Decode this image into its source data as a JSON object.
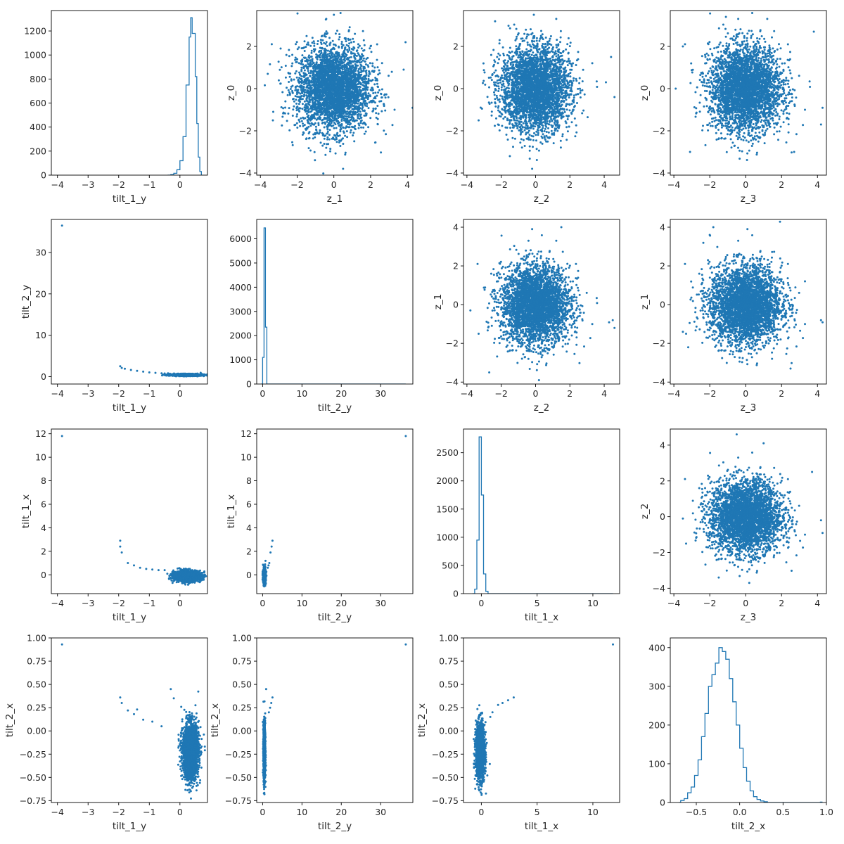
{
  "chart_data": {
    "type": "pair-grid",
    "series_color": "#1f77b4",
    "variables": [
      "tilt_1_y",
      "tilt_2_y",
      "tilt_1_x",
      "tilt_2_x",
      "z_0",
      "z_1",
      "z_2",
      "z_3"
    ],
    "panels": [
      {
        "type": "histogram",
        "row": 0,
        "col": 0,
        "xlabel": "tilt_1_y",
        "ylabel": "",
        "xlim": [
          -4.2,
          0.9
        ],
        "ylim": [
          0,
          1370
        ],
        "xticks": [
          -4,
          -3,
          -2,
          -1,
          0
        ],
        "yticks": [
          0,
          200,
          400,
          600,
          800,
          1000,
          1200
        ],
        "bins": [
          [
            -0.4,
            0
          ],
          [
            -0.3,
            4
          ],
          [
            -0.2,
            15
          ],
          [
            -0.1,
            45
          ],
          [
            0,
            120
          ],
          [
            0.1,
            320
          ],
          [
            0.2,
            750
          ],
          [
            0.3,
            1150
          ],
          [
            0.35,
            1310
          ],
          [
            0.4,
            1180
          ],
          [
            0.5,
            820
          ],
          [
            0.55,
            430
          ],
          [
            0.6,
            150
          ],
          [
            0.65,
            30
          ],
          [
            0.7,
            0
          ]
        ]
      },
      {
        "type": "scatter",
        "row": 0,
        "col": 1,
        "xlabel": "z_1",
        "ylabel": "z_0",
        "xlim": [
          -4.2,
          4.3
        ],
        "ylim": [
          -4.1,
          3.7
        ],
        "xticks": [
          -4,
          -2,
          0,
          2,
          4
        ],
        "yticks": [
          -4,
          -2,
          0,
          2
        ],
        "cloud": {
          "cx": 0,
          "cy": 0,
          "sx": 1,
          "sy": 1,
          "n": 3500
        },
        "points": [
          [
            -3.6,
            0.7
          ],
          [
            -3.3,
            -1.1
          ],
          [
            3.9,
            2.2
          ],
          [
            3.8,
            0.9
          ],
          [
            -2.9,
            1.9
          ],
          [
            0.5,
            -3.8
          ],
          [
            0.0,
            3.5
          ]
        ]
      },
      {
        "type": "scatter",
        "row": 0,
        "col": 2,
        "xlabel": "z_2",
        "ylabel": "z_0",
        "xlim": [
          -4.2,
          4.9
        ],
        "ylim": [
          -4.1,
          3.7
        ],
        "xticks": [
          -4,
          -2,
          0,
          2,
          4
        ],
        "yticks": [
          -4,
          -2,
          0,
          2
        ],
        "cloud": {
          "cx": 0,
          "cy": 0,
          "sx": 1,
          "sy": 1,
          "n": 3500
        },
        "points": [
          [
            -3.2,
            -0.9
          ],
          [
            4.6,
            -0.4
          ],
          [
            4.4,
            1.5
          ],
          [
            -1.5,
            -3.2
          ],
          [
            -0.2,
            -3.8
          ],
          [
            -0.1,
            3.5
          ],
          [
            4.1,
            0.3
          ]
        ]
      },
      {
        "type": "scatter",
        "row": 0,
        "col": 3,
        "xlabel": "z_3",
        "ylabel": "z_0",
        "xlim": [
          -4.2,
          4.5
        ],
        "ylim": [
          -4.1,
          3.7
        ],
        "xticks": [
          -4,
          -2,
          0,
          2,
          4
        ],
        "yticks": [
          -4,
          -2,
          0,
          2
        ],
        "cloud": {
          "cx": 0,
          "cy": 0,
          "sx": 1,
          "sy": 1,
          "n": 3500
        },
        "points": [
          [
            -3.9,
            0.0
          ],
          [
            -3.1,
            -3.0
          ],
          [
            4.2,
            -1.7
          ],
          [
            3.8,
            2.7
          ],
          [
            -1.1,
            3.4
          ],
          [
            2.7,
            -3.0
          ],
          [
            -3.5,
            2.0
          ]
        ]
      },
      {
        "type": "scatter",
        "row": 1,
        "col": 0,
        "xlabel": "tilt_1_y",
        "ylabel": "tilt_2_y",
        "xlim": [
          -4.2,
          0.9
        ],
        "ylim": [
          -1.8,
          38
        ],
        "xticks": [
          -4,
          -3,
          -2,
          -1,
          0
        ],
        "yticks": [
          0,
          10,
          20,
          30
        ],
        "cloud": {
          "cx": 0.2,
          "cy": 0.4,
          "sx": 0.25,
          "sy": 0.12,
          "n": 1500
        },
        "points": [
          [
            -3.85,
            36.5
          ],
          [
            -1.95,
            2.5
          ],
          [
            -1.9,
            2.1
          ],
          [
            -1.8,
            1.9
          ],
          [
            -1.6,
            1.6
          ],
          [
            -1.4,
            1.4
          ],
          [
            -1.2,
            1.2
          ],
          [
            -1.0,
            1.0
          ],
          [
            -0.8,
            0.9
          ],
          [
            -0.6,
            0.8
          ],
          [
            -0.5,
            0.75
          ]
        ]
      },
      {
        "type": "histogram",
        "row": 1,
        "col": 1,
        "xlabel": "tilt_2_y",
        "ylabel": "",
        "xlim": [
          -1.5,
          38.2
        ],
        "ylim": [
          0,
          6800
        ],
        "xticks": [
          0,
          10,
          20,
          30
        ],
        "yticks": [
          0,
          1000,
          2000,
          3000,
          4000,
          5000,
          6000
        ],
        "bins": [
          [
            -0.3,
            0
          ],
          [
            0,
            1100
          ],
          [
            0.36,
            6450
          ],
          [
            0.72,
            2350
          ],
          [
            1.08,
            0
          ],
          [
            36.4,
            0
          ]
        ]
      },
      {
        "type": "scatter",
        "row": 1,
        "col": 2,
        "xlabel": "z_2",
        "ylabel": "z_1",
        "xlim": [
          -4.2,
          4.9
        ],
        "ylim": [
          -4.1,
          4.4
        ],
        "xticks": [
          -4,
          -2,
          0,
          2,
          4
        ],
        "yticks": [
          -4,
          -2,
          0,
          2,
          4
        ],
        "cloud": {
          "cx": 0,
          "cy": 0,
          "sx": 1,
          "sy": 1,
          "n": 3500
        },
        "points": [
          [
            -3.8,
            -0.3
          ],
          [
            4.6,
            -1.2
          ],
          [
            4.5,
            -0.8
          ],
          [
            1.5,
            4.0
          ],
          [
            -0.2,
            3.9
          ],
          [
            -2.7,
            -3.5
          ],
          [
            0.2,
            -3.9
          ]
        ]
      },
      {
        "type": "scatter",
        "row": 1,
        "col": 3,
        "xlabel": "z_3",
        "ylabel": "z_1",
        "xlim": [
          -4.2,
          4.5
        ],
        "ylim": [
          -4.1,
          4.4
        ],
        "xticks": [
          -4,
          -2,
          0,
          2,
          4
        ],
        "yticks": [
          -4,
          -2,
          0,
          2,
          4
        ],
        "cloud": {
          "cx": 0,
          "cy": 0,
          "sx": 1,
          "sy": 1,
          "n": 3500
        },
        "points": [
          [
            -1.8,
            4.0
          ],
          [
            0.1,
            3.9
          ],
          [
            4.2,
            -0.8
          ],
          [
            -3.5,
            -1.4
          ],
          [
            -3.2,
            -2.2
          ],
          [
            2.5,
            -3.3
          ],
          [
            -2.0,
            3.6
          ]
        ]
      },
      {
        "type": "scatter",
        "row": 2,
        "col": 0,
        "xlabel": "tilt_1_y",
        "ylabel": "tilt_1_x",
        "xlim": [
          -4.2,
          0.9
        ],
        "ylim": [
          -1.6,
          12.4
        ],
        "xticks": [
          -4,
          -3,
          -2,
          -1,
          0
        ],
        "yticks": [
          0,
          2,
          4,
          6,
          8,
          10,
          12
        ],
        "cloud": {
          "cx": 0.25,
          "cy": -0.1,
          "sx": 0.22,
          "sy": 0.22,
          "n": 1500
        },
        "points": [
          [
            -3.85,
            11.8
          ],
          [
            -1.95,
            2.9
          ],
          [
            -1.95,
            2.4
          ],
          [
            -1.9,
            1.9
          ],
          [
            -1.7,
            1.0
          ],
          [
            -1.5,
            0.8
          ],
          [
            -1.3,
            0.6
          ],
          [
            -1.1,
            0.5
          ],
          [
            -0.9,
            0.45
          ],
          [
            -0.7,
            0.4
          ],
          [
            -0.5,
            0.4
          ]
        ]
      },
      {
        "type": "scatter",
        "row": 2,
        "col": 1,
        "xlabel": "tilt_2_y",
        "ylabel": "tilt_1_x",
        "xlim": [
          -1.5,
          38.2
        ],
        "ylim": [
          -1.6,
          12.4
        ],
        "xticks": [
          0,
          10,
          20,
          30
        ],
        "yticks": [
          0,
          2,
          4,
          6,
          8,
          10,
          12
        ],
        "cloud": {
          "cx": 0.45,
          "cy": -0.1,
          "sx": 0.15,
          "sy": 0.3,
          "n": 1200
        },
        "points": [
          [
            36.4,
            11.8
          ],
          [
            2.5,
            2.9
          ],
          [
            2.3,
            2.4
          ],
          [
            2.0,
            1.9
          ],
          [
            1.7,
            1.0
          ],
          [
            1.5,
            0.8
          ],
          [
            1.3,
            0.6
          ]
        ]
      },
      {
        "type": "histogram",
        "row": 2,
        "col": 2,
        "xlabel": "tilt_1_x",
        "ylabel": "",
        "xlim": [
          -1.6,
          12.4
        ],
        "ylim": [
          0,
          2920
        ],
        "xticks": [
          0,
          5,
          10
        ],
        "yticks": [
          0,
          500,
          1000,
          1500,
          2000,
          2500
        ],
        "bins": [
          [
            -0.8,
            0
          ],
          [
            -0.6,
            80
          ],
          [
            -0.4,
            950
          ],
          [
            -0.2,
            2780
          ],
          [
            0,
            1750
          ],
          [
            0.2,
            350
          ],
          [
            0.4,
            40
          ],
          [
            0.6,
            0
          ],
          [
            11.8,
            0
          ]
        ]
      },
      {
        "type": "scatter",
        "row": 2,
        "col": 3,
        "xlabel": "z_3",
        "ylabel": "z_2",
        "xlim": [
          -4.2,
          4.5
        ],
        "ylim": [
          -4.3,
          4.9
        ],
        "xticks": [
          -4,
          -2,
          0,
          2,
          4
        ],
        "yticks": [
          -4,
          -2,
          0,
          2,
          4
        ],
        "cloud": {
          "cx": 0,
          "cy": 0,
          "sx": 1,
          "sy": 1,
          "n": 3500
        },
        "points": [
          [
            -3.5,
            -0.1
          ],
          [
            4.2,
            -0.2
          ],
          [
            -0.5,
            4.6
          ],
          [
            3.7,
            2.5
          ],
          [
            0.2,
            -3.7
          ],
          [
            -1.5,
            -3.4
          ],
          [
            1.0,
            4.1
          ]
        ]
      },
      {
        "type": "scatter",
        "row": 3,
        "col": 0,
        "xlabel": "tilt_1_y",
        "ylabel": "tilt_2_x",
        "xlim": [
          -4.2,
          0.9
        ],
        "ylim": [
          -0.77,
          1.0
        ],
        "xticks": [
          -4,
          -3,
          -2,
          -1,
          0
        ],
        "yticks": [
          -0.75,
          -0.5,
          -0.25,
          0.0,
          0.25,
          0.5,
          0.75,
          1.0
        ],
        "cloud": {
          "cx": 0.35,
          "cy": -0.22,
          "sx": 0.13,
          "sy": 0.15,
          "n": 2000
        },
        "points": [
          [
            -3.85,
            0.93
          ],
          [
            -1.95,
            0.36
          ],
          [
            -1.9,
            0.3
          ],
          [
            -1.7,
            0.22
          ],
          [
            -1.5,
            0.18
          ],
          [
            -1.4,
            0.23
          ],
          [
            -1.2,
            0.12
          ],
          [
            -0.9,
            0.1
          ],
          [
            -0.6,
            0.05
          ],
          [
            -0.3,
            0.45
          ],
          [
            -0.2,
            0.35
          ]
        ]
      },
      {
        "type": "scatter",
        "row": 3,
        "col": 1,
        "xlabel": "tilt_2_y",
        "ylabel": "tilt_2_x",
        "xlim": [
          -1.5,
          38.2
        ],
        "ylim": [
          -0.77,
          1.0
        ],
        "xticks": [
          0,
          10,
          20,
          30
        ],
        "yticks": [
          -0.75,
          -0.5,
          -0.25,
          0.0,
          0.25,
          0.5,
          0.75,
          1.0
        ],
        "cloud": {
          "cx": 0.45,
          "cy": -0.22,
          "sx": 0.12,
          "sy": 0.15,
          "n": 1500
        },
        "points": [
          [
            36.4,
            0.93
          ],
          [
            2.5,
            0.36
          ],
          [
            2.2,
            0.3
          ],
          [
            1.9,
            0.25
          ],
          [
            1.6,
            0.2
          ],
          [
            0.9,
            0.45
          ]
        ]
      },
      {
        "type": "scatter",
        "row": 3,
        "col": 2,
        "xlabel": "tilt_1_x",
        "ylabel": "tilt_2_x",
        "xlim": [
          -1.6,
          12.4
        ],
        "ylim": [
          -0.77,
          1.0
        ],
        "xticks": [
          0,
          5,
          10
        ],
        "yticks": [
          -0.75,
          -0.5,
          -0.25,
          0.0,
          0.25,
          0.5,
          0.75,
          1.0
        ],
        "cloud": {
          "cx": -0.1,
          "cy": -0.22,
          "sx": 0.2,
          "sy": 0.15,
          "n": 1500
        },
        "points": [
          [
            11.8,
            0.93
          ],
          [
            2.9,
            0.36
          ],
          [
            2.4,
            0.33
          ],
          [
            1.9,
            0.3
          ],
          [
            1.5,
            0.28
          ],
          [
            1.0,
            0.2
          ],
          [
            0.8,
            0.15
          ]
        ]
      },
      {
        "type": "histogram",
        "row": 3,
        "col": 3,
        "xlabel": "tilt_2_x",
        "ylabel": "",
        "xlim": [
          -0.8,
          1.0
        ],
        "ylim": [
          0,
          425
        ],
        "xticks": [
          -0.5,
          0.0,
          0.5,
          1.0
        ],
        "yticks": [
          0,
          100,
          200,
          300,
          400
        ],
        "bins": [
          [
            -0.7,
            0
          ],
          [
            -0.68,
            5
          ],
          [
            -0.64,
            10
          ],
          [
            -0.6,
            25
          ],
          [
            -0.56,
            40
          ],
          [
            -0.52,
            70
          ],
          [
            -0.48,
            110
          ],
          [
            -0.44,
            170
          ],
          [
            -0.4,
            230
          ],
          [
            -0.36,
            300
          ],
          [
            -0.32,
            330
          ],
          [
            -0.28,
            360
          ],
          [
            -0.24,
            400
          ],
          [
            -0.2,
            390
          ],
          [
            -0.16,
            370
          ],
          [
            -0.12,
            320
          ],
          [
            -0.08,
            260
          ],
          [
            -0.04,
            200
          ],
          [
            0.0,
            140
          ],
          [
            0.04,
            90
          ],
          [
            0.08,
            55
          ],
          [
            0.12,
            30
          ],
          [
            0.16,
            15
          ],
          [
            0.2,
            8
          ],
          [
            0.24,
            4
          ],
          [
            0.28,
            2
          ],
          [
            0.32,
            0
          ],
          [
            0.93,
            1
          ],
          [
            0.95,
            0
          ]
        ]
      }
    ]
  }
}
